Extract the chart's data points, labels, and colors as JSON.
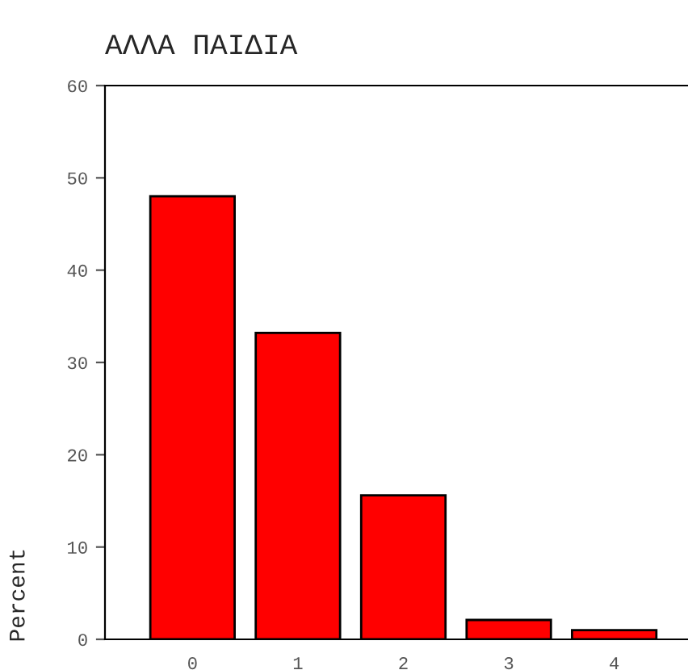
{
  "chart_data": {
    "type": "bar",
    "title": "ΑΛΛΑ ΠΑΙΔΙΑ",
    "ylabel": "Percent",
    "categories": [
      "0",
      "1",
      "2",
      "3",
      "4"
    ],
    "series": [
      {
        "color": "#ff0000",
        "values": [
          48,
          33.2,
          15.6,
          2.1,
          1.0
        ]
      }
    ],
    "ylim": [
      0,
      60
    ],
    "yticks": [
      0,
      10,
      20,
      30,
      40,
      50,
      60
    ],
    "grid": false,
    "legend": false
  }
}
